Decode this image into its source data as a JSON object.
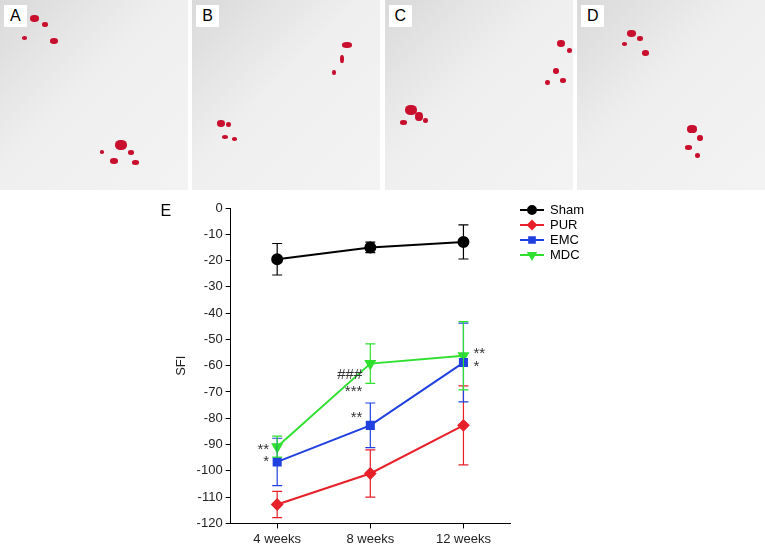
{
  "panels": [
    {
      "label": "A"
    },
    {
      "label": "B"
    },
    {
      "label": "C"
    },
    {
      "label": "D"
    }
  ],
  "chart_data": {
    "type": "line",
    "title": "E",
    "y_label": "SFI",
    "categories": [
      "4 weeks",
      "8 weeks",
      "12 weeks"
    ],
    "series": [
      {
        "name": "Sham",
        "color": "#000000",
        "marker": "circle",
        "values": [
          -19.5,
          -15,
          -12.9
        ],
        "errors": [
          6,
          2,
          6.5
        ]
      },
      {
        "name": "PUR",
        "color": "#e8202a",
        "marker": "diamond",
        "values": [
          -112.8,
          -101,
          -82.7
        ],
        "errors": [
          5,
          9,
          15
        ]
      },
      {
        "name": "EMC",
        "color": "#2040e0",
        "marker": "square",
        "values": [
          -96.6,
          -82.7,
          -58.8
        ],
        "errors": [
          9,
          8.5,
          15
        ]
      },
      {
        "name": "MDC",
        "color": "#30e030",
        "marker": "triangle-down",
        "values": [
          -90.8,
          -59.2,
          -56.2
        ],
        "errors": [
          4,
          7.5,
          13
        ]
      }
    ],
    "ylim": [
      -120,
      0
    ],
    "yticks": [
      -120,
      -110,
      -100,
      -90,
      -80,
      -70,
      -60,
      -50,
      -40,
      -30,
      -20,
      -10,
      0
    ],
    "grid": false,
    "legend": "right",
    "annotations": [
      {
        "text": "**",
        "x": "4 weeks",
        "y": -92
      },
      {
        "text": "*",
        "x": "4 weeks",
        "y": -96.5
      },
      {
        "text": "###",
        "x": "8 weeks",
        "y": -63.5
      },
      {
        "text": "***",
        "x": "8 weeks",
        "y": -70
      },
      {
        "text": "**",
        "x": "8 weeks",
        "y": -80
      },
      {
        "text": "**",
        "x": "12 weeks",
        "y": -55.5
      },
      {
        "text": "*",
        "x": "12 weeks",
        "y": -60.5
      }
    ]
  }
}
